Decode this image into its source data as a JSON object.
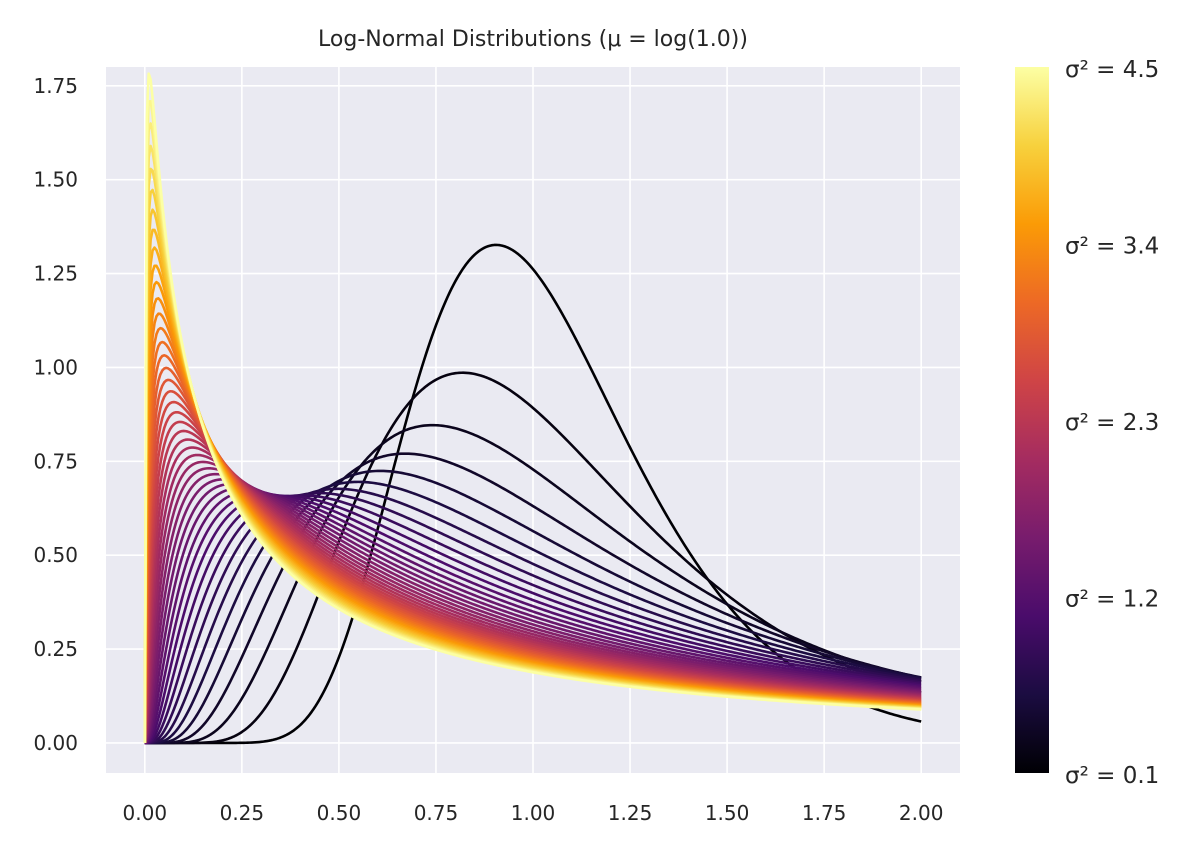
{
  "chart_data": {
    "type": "line",
    "title": "Log-Normal Distributions (μ = log(1.0))",
    "xlabel": "",
    "ylabel": "",
    "mu": 0.0,
    "x_range": [
      0.0,
      2.0
    ],
    "xlim": [
      -0.1,
      2.1
    ],
    "ylim": [
      -0.08,
      1.8
    ],
    "x_ticks": [
      "0.00",
      "0.25",
      "0.50",
      "0.75",
      "1.00",
      "1.25",
      "1.50",
      "1.75",
      "2.00"
    ],
    "y_ticks": [
      "0.00",
      "0.25",
      "0.50",
      "0.75",
      "1.00",
      "1.25",
      "1.50",
      "1.75"
    ],
    "sigma2_range": [
      0.1,
      4.5
    ],
    "series_count": 45,
    "colormap": "inferno",
    "grid": true,
    "background": "#eaeaf2",
    "grid_color": "#ffffff",
    "colorbar": {
      "position": "right",
      "ticks": [
        {
          "value": 4.5,
          "label": "σ² = 4.5"
        },
        {
          "value": 3.4,
          "label": "σ² = 3.4"
        },
        {
          "value": 2.3,
          "label": "σ² = 2.3"
        },
        {
          "value": 1.2,
          "label": "σ² = 1.2"
        },
        {
          "value": 0.1,
          "label": "σ² = 0.1"
        }
      ],
      "colors": [
        "#000004",
        "#1b0c41",
        "#4a0c6b",
        "#781c6d",
        "#a52c60",
        "#cf4446",
        "#ed6925",
        "#fb9b06",
        "#f7d13d",
        "#fcffa4"
      ]
    }
  }
}
